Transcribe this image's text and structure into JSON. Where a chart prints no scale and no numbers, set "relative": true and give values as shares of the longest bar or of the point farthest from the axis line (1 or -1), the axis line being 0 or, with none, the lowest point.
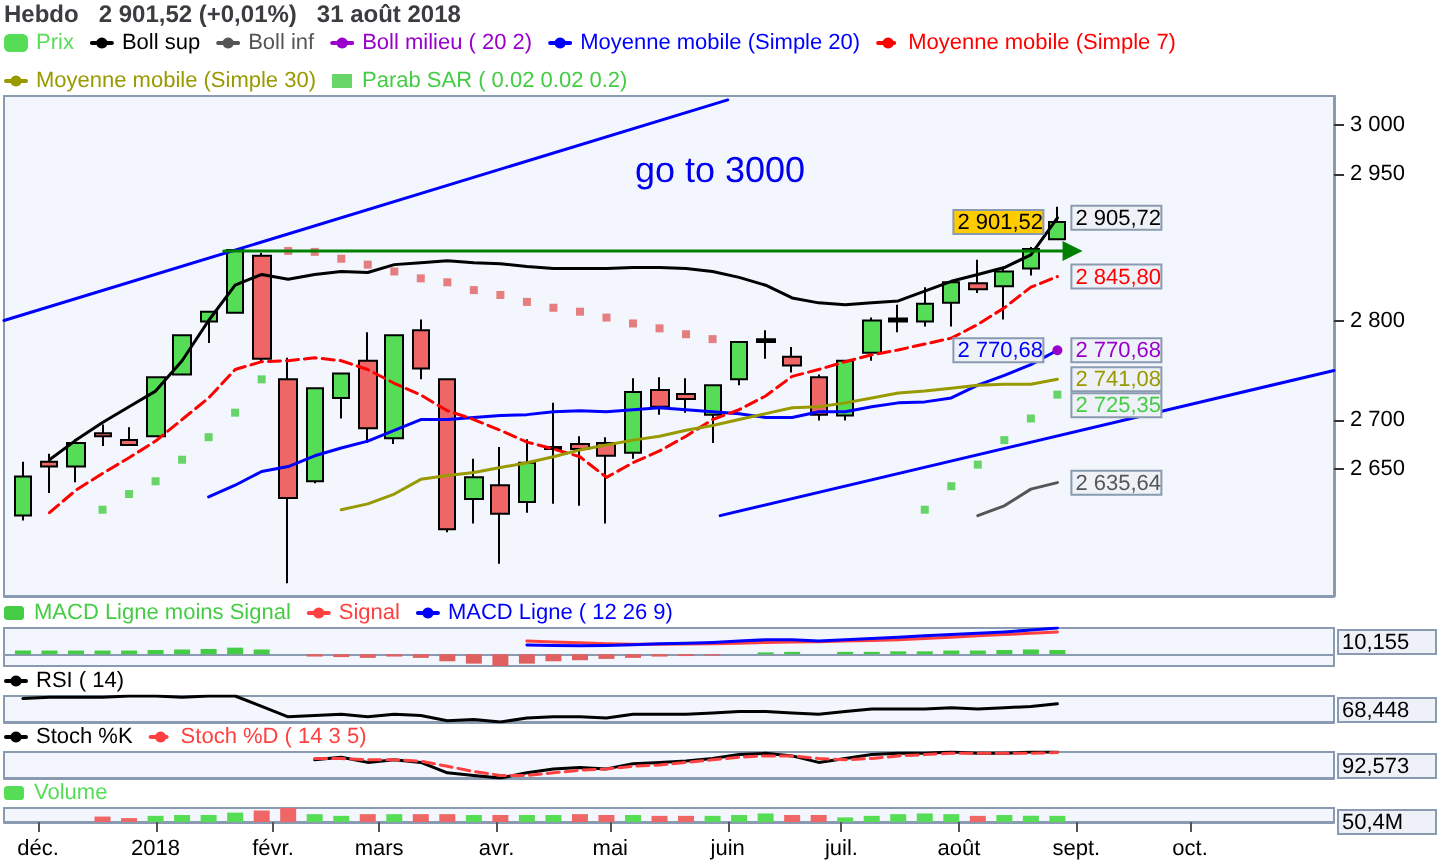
{
  "chart_data": [
    {
      "type": "candlestick",
      "title": "Hebdo   2 901,52 (+0,01%)   31 août 2018",
      "legend": "top left",
      "tick_labels": "y",
      "marker": "none",
      "x": [
        "2017-11-27",
        "2017-12-04",
        "2017-12-11",
        "2017-12-18",
        "2017-12-25",
        "2018-01-01",
        "2018-01-08",
        "2018-01-15",
        "2018-01-22",
        "2018-01-29",
        "2018-02-05",
        "2018-02-12",
        "2018-02-19",
        "2018-02-26",
        "2018-03-05",
        "2018-03-12",
        "2018-03-19",
        "2018-03-26",
        "2018-04-02",
        "2018-04-09",
        "2018-04-16",
        "2018-04-23",
        "2018-04-30",
        "2018-05-07",
        "2018-05-14",
        "2018-05-21",
        "2018-05-28",
        "2018-06-04",
        "2018-06-11",
        "2018-06-18",
        "2018-06-25",
        "2018-07-02",
        "2018-07-09",
        "2018-07-16",
        "2018-07-23",
        "2018-07-30",
        "2018-08-06",
        "2018-08-13",
        "2018-08-20",
        "2018-08-27"
      ],
      "xlim": [
        "2017-11-22",
        "2018-11-08"
      ],
      "ylim": [
        2520,
        3030
      ],
      "yticks": [
        {
          "value": 2650,
          "label": "2 650"
        },
        {
          "value": 2700,
          "label": "2 700"
        },
        {
          "value": 2800,
          "label": "2 800"
        },
        {
          "value": 2950,
          "label": "2 950"
        },
        {
          "value": 3000,
          "label": "3 000"
        }
      ],
      "annotations": [
        "go to 3000",
        {
          "text": "2 901,52",
          "x": "2018-08-27",
          "y": 2901.52
        }
      ],
      "series": [
        {
          "name": "Prix",
          "type": "candlestick",
          "color": "#55dd55",
          "colors": [
            "#55dd55",
            "#ee6666",
            "#55dd55",
            "#ee6666",
            "#ee6666",
            "#55dd55",
            "#55dd55",
            "#55dd55",
            "#55dd55",
            "#ee6666",
            "#ee6666",
            "#55dd55",
            "#55dd55",
            "#ee6666",
            "#55dd55",
            "#ee6666",
            "#ee6666",
            "#55dd55",
            "#ee6666",
            "#55dd55",
            "#000000",
            "#ee6666",
            "#ee6666",
            "#55dd55",
            "#ee6666",
            "#ee6666",
            "#55dd55",
            "#55dd55",
            "#000000",
            "#ee6666",
            "#ee6666",
            "#55dd55",
            "#55dd55",
            "#000000",
            "#55dd55",
            "#55dd55",
            "#ee6666",
            "#55dd55",
            "#55dd55",
            "#55dd55"
          ],
          "ohlc": [
            [
              2602,
              2657,
              2597,
              2642
            ],
            [
              2657,
              2665,
              2625,
              2652
            ],
            [
              2652,
              2680,
              2636,
              2676
            ],
            [
              2686,
              2695,
              2673,
              2683
            ],
            [
              2679,
              2692,
              2673,
              2674
            ],
            [
              2683,
              2743,
              2683,
              2743
            ],
            [
              2746,
              2787,
              2746,
              2786
            ],
            [
              2800,
              2810,
              2778,
              2810
            ],
            [
              2809,
              2873,
              2808,
              2873
            ],
            [
              2867,
              2870,
              2759,
              2762
            ],
            [
              2741,
              2763,
              2533,
              2620
            ],
            [
              2637,
              2732,
              2635,
              2732
            ],
            [
              2722,
              2747,
              2701,
              2747
            ],
            [
              2760,
              2789,
              2676,
              2691
            ],
            [
              2681,
              2786,
              2675,
              2786
            ],
            [
              2791,
              2802,
              2741,
              2752
            ],
            [
              2741,
              2741,
              2585,
              2588
            ],
            [
              2619,
              2660,
              2594,
              2641
            ],
            [
              2633,
              2672,
              2553,
              2604
            ],
            [
              2616,
              2680,
              2605,
              2656
            ],
            [
              2670,
              2717,
              2614,
              2672
            ],
            [
              2675,
              2683,
              2612,
              2670
            ],
            [
              2676,
              2682,
              2594,
              2663
            ],
            [
              2666,
              2742,
              2660,
              2728
            ],
            [
              2730,
              2743,
              2705,
              2713
            ],
            [
              2726,
              2742,
              2707,
              2721
            ],
            [
              2705,
              2736,
              2676,
              2735
            ],
            [
              2741,
              2779,
              2735,
              2779
            ],
            [
              2779,
              2791,
              2762,
              2782
            ],
            [
              2764,
              2774,
              2748,
              2755
            ],
            [
              2743,
              2746,
              2699,
              2705
            ],
            [
              2704,
              2760,
              2699,
              2760
            ],
            [
              2768,
              2804,
              2760,
              2801
            ],
            [
              2800,
              2817,
              2789,
              2803
            ],
            [
              2800,
              2835,
              2795,
              2818
            ],
            [
              2819,
              2841,
              2795,
              2840
            ],
            [
              2839,
              2863,
              2829,
              2833
            ],
            [
              2836,
              2855,
              2802,
              2851
            ],
            [
              2854,
              2876,
              2847,
              2874
            ],
            [
              2884,
              2917,
              2884,
              2901.52
            ]
          ]
        },
        {
          "name": "Boll sup",
          "type": "line",
          "color": "#000000",
          "values": [
            null,
            2659,
            2679,
            2697,
            2713,
            2729,
            2760,
            2801,
            2837,
            2848,
            2843,
            2848,
            2851,
            2850,
            2858,
            2860,
            2862,
            2860,
            2859,
            2856,
            2854,
            2854,
            2854,
            2855,
            2855,
            2854,
            2851,
            2845,
            2837,
            2824,
            2819,
            2817,
            2819,
            2821,
            2831,
            2841,
            2848,
            2855,
            2868,
            2905.72
          ],
          "value_labels": [
            null,
            null,
            null,
            null,
            null,
            null,
            null,
            null,
            null,
            null,
            null,
            null,
            null,
            null,
            null,
            null,
            null,
            null,
            null,
            null,
            null,
            null,
            null,
            null,
            null,
            null,
            null,
            null,
            null,
            null,
            null,
            null,
            null,
            null,
            null,
            null,
            null,
            null,
            null,
            "2 905,72"
          ]
        },
        {
          "name": "Boll inf",
          "type": "line",
          "color": "#555555",
          "values": [
            null,
            null,
            null,
            null,
            null,
            null,
            null,
            null,
            null,
            null,
            null,
            null,
            null,
            null,
            null,
            null,
            null,
            null,
            null,
            null,
            null,
            null,
            null,
            null,
            null,
            null,
            null,
            null,
            null,
            null,
            null,
            null,
            null,
            null,
            null,
            null,
            2602,
            2612,
            2629,
            2635.64
          ],
          "value_labels": [
            null,
            null,
            null,
            null,
            null,
            null,
            null,
            null,
            null,
            null,
            null,
            null,
            null,
            null,
            null,
            null,
            null,
            null,
            null,
            null,
            null,
            null,
            null,
            null,
            null,
            null,
            null,
            null,
            null,
            null,
            null,
            null,
            null,
            null,
            null,
            null,
            null,
            null,
            null,
            "2 635,64"
          ]
        },
        {
          "name": "Boll milieu ( 20 2)",
          "type": "line",
          "color": "#9900cc",
          "marker": "circle",
          "values": [
            null,
            null,
            null,
            null,
            null,
            null,
            null,
            null,
            null,
            null,
            null,
            null,
            null,
            null,
            null,
            null,
            null,
            null,
            null,
            null,
            null,
            null,
            null,
            null,
            null,
            null,
            null,
            null,
            null,
            null,
            null,
            null,
            null,
            null,
            null,
            null,
            null,
            null,
            null,
            2770.68
          ],
          "value_labels": [
            null,
            null,
            null,
            null,
            null,
            null,
            null,
            null,
            null,
            null,
            null,
            null,
            null,
            null,
            null,
            null,
            null,
            null,
            null,
            null,
            null,
            null,
            null,
            null,
            null,
            null,
            null,
            null,
            null,
            null,
            null,
            null,
            null,
            null,
            null,
            null,
            null,
            null,
            null,
            "2 770,68"
          ]
        },
        {
          "name": "Moyenne mobile (Simple 20)",
          "type": "line",
          "color": "#0000ff",
          "values": [
            null,
            null,
            null,
            null,
            null,
            null,
            null,
            2621,
            2633,
            2647,
            2652,
            2663,
            2671,
            2678,
            2689,
            2700,
            2700,
            2702,
            2704,
            2705,
            2708,
            2709,
            2708,
            2710,
            2712,
            2710,
            2708,
            2706,
            2702,
            2702,
            2708,
            2708,
            2713,
            2717,
            2718,
            2722,
            2735,
            2745,
            2756,
            2770.68
          ],
          "value_labels": [
            null,
            null,
            null,
            null,
            null,
            null,
            null,
            null,
            null,
            null,
            null,
            null,
            null,
            null,
            null,
            null,
            null,
            null,
            null,
            null,
            null,
            null,
            null,
            null,
            null,
            null,
            null,
            null,
            null,
            null,
            null,
            null,
            null,
            null,
            null,
            null,
            null,
            null,
            null,
            "2 770,68"
          ]
        },
        {
          "name": "Moyenne mobile (Simple 7)",
          "type": "line",
          "color": "#ff0000",
          "line_style": "dashed",
          "values": [
            null,
            2605,
            2628,
            2645,
            2661,
            2678,
            2700,
            2722,
            2751,
            2759,
            2760,
            2763,
            2760,
            2751,
            2737,
            2725,
            2709,
            2700,
            2689,
            2677,
            2670,
            2662,
            2641,
            2656,
            2668,
            2683,
            2700,
            2710,
            2724,
            2744,
            2751,
            2759,
            2766,
            2771,
            2777,
            2783,
            2797,
            2814,
            2835,
            2845.8
          ],
          "value_labels": [
            null,
            null,
            null,
            null,
            null,
            null,
            null,
            null,
            null,
            null,
            null,
            null,
            null,
            null,
            null,
            null,
            null,
            null,
            null,
            null,
            null,
            null,
            null,
            null,
            null,
            null,
            null,
            null,
            null,
            null,
            null,
            null,
            null,
            null,
            null,
            null,
            null,
            null,
            null,
            "2 845,80"
          ]
        },
        {
          "name": "Moyenne mobile (Simple 30)",
          "type": "line",
          "color": "#999900",
          "values": [
            null,
            null,
            null,
            null,
            null,
            null,
            null,
            null,
            null,
            null,
            null,
            null,
            2608,
            2614,
            2624,
            2639,
            2643,
            2646,
            2651,
            2656,
            2662,
            2669,
            2674,
            2679,
            2683,
            2689,
            2694,
            2700,
            2706,
            2712,
            2713,
            2717,
            2722,
            2727,
            2729,
            2732,
            2735,
            2736,
            2736,
            2741.08
          ],
          "value_labels": [
            null,
            null,
            null,
            null,
            null,
            null,
            null,
            null,
            null,
            null,
            null,
            null,
            null,
            null,
            null,
            null,
            null,
            null,
            null,
            null,
            null,
            null,
            null,
            null,
            null,
            null,
            null,
            null,
            null,
            null,
            null,
            null,
            null,
            null,
            null,
            null,
            null,
            null,
            null,
            "2 741,08"
          ]
        },
        {
          "name": "Parab SAR ( 0.02 0.02 0.2)",
          "type": "scatter",
          "marker": "square",
          "color": "#44cc44",
          "colors": [
            "#44cc44",
            "#44cc44",
            "#44cc44",
            "#44cc44",
            "#44cc44",
            "#44cc44",
            "#44cc44",
            "#44cc44",
            "#44cc44",
            "#44cc44",
            "#e06060",
            "#e06060",
            "#e06060",
            "#e06060",
            "#e06060",
            "#e06060",
            "#e06060",
            "#e06060",
            "#e06060",
            "#e06060",
            "#e06060",
            "#e06060",
            "#e06060",
            "#e06060",
            "#e06060",
            "#e06060",
            "#e06060",
            "#44cc44",
            "#44cc44",
            "#44cc44",
            "#44cc44",
            "#44cc44",
            "#44cc44",
            "#44cc44",
            "#44cc44",
            "#44cc44",
            "#44cc44",
            "#44cc44",
            "#44cc44",
            "#44cc44"
          ],
          "values": [
            null,
            null,
            null,
            2608,
            2624,
            2637,
            2659,
            2682,
            2707,
            2741,
            2872,
            2871,
            2864,
            2858,
            2851,
            2844,
            2840,
            2832,
            2827,
            2820,
            2814,
            2810,
            2804,
            2798,
            2793,
            2787,
            2782,
            null,
            null,
            null,
            null,
            null,
            null,
            null,
            2608,
            2632,
            2654,
            2679,
            2701,
            2725.35
          ],
          "value_labels": [
            null,
            null,
            null,
            null,
            null,
            null,
            null,
            null,
            null,
            null,
            null,
            null,
            null,
            null,
            null,
            null,
            null,
            null,
            null,
            null,
            null,
            null,
            null,
            null,
            null,
            null,
            null,
            null,
            null,
            null,
            null,
            null,
            null,
            null,
            null,
            null,
            null,
            null,
            null,
            "2 725,35"
          ]
        },
        {
          "type": "line",
          "color": "#0000ff",
          "x": [
            "2017-11-22",
            "2018-06-01"
          ],
          "values": [
            2801,
            3026
          ]
        },
        {
          "type": "line",
          "color": "#0000ff",
          "x": [
            "2018-05-30",
            "2018-11-08"
          ],
          "values": [
            2602,
            2750
          ]
        },
        {
          "type": "line",
          "color": "#008000",
          "marker": "triangle",
          "x": [
            "2018-01-19",
            "2018-08-31"
          ],
          "values": [
            2872,
            2872
          ]
        }
      ]
    },
    {
      "type": "bar",
      "relative": true,
      "legend": "top left",
      "tick_labels": false,
      "marker": "none",
      "x": [
        "2017-11-27",
        "2017-12-04",
        "2017-12-11",
        "2017-12-18",
        "2017-12-25",
        "2018-01-01",
        "2018-01-08",
        "2018-01-15",
        "2018-01-22",
        "2018-01-29",
        "2018-02-05",
        "2018-02-12",
        "2018-02-19",
        "2018-02-26",
        "2018-03-05",
        "2018-03-12",
        "2018-03-19",
        "2018-03-26",
        "2018-04-02",
        "2018-04-09",
        "2018-04-16",
        "2018-04-23",
        "2018-04-30",
        "2018-05-07",
        "2018-05-14",
        "2018-05-21",
        "2018-05-28",
        "2018-06-04",
        "2018-06-11",
        "2018-06-18",
        "2018-06-25",
        "2018-07-02",
        "2018-07-09",
        "2018-07-16",
        "2018-07-23",
        "2018-07-30",
        "2018-08-06",
        "2018-08-13",
        "2018-08-20",
        "2018-08-27"
      ],
      "xlim": [
        "2017-11-22",
        "2018-11-08"
      ],
      "annotations": [
        "10,155"
      ],
      "series": [
        {
          "name": "MACD Ligne moins Signal",
          "type": "bar",
          "color": "#44cc44",
          "colors": [
            "#44cc44",
            "#44cc44",
            "#44cc44",
            "#44cc44",
            "#44cc44",
            "#44cc44",
            "#44cc44",
            "#44cc44",
            "#44cc44",
            "#44cc44",
            "#44cc44",
            "#e06060",
            "#e06060",
            "#e06060",
            "#e06060",
            "#e06060",
            "#e06060",
            "#e06060",
            "#e06060",
            "#e06060",
            "#e06060",
            "#e06060",
            "#e06060",
            "#e06060",
            "#e06060",
            "#e06060",
            "#e06060",
            "#44cc44",
            "#44cc44",
            "#44cc44",
            "#44cc44",
            "#44cc44",
            "#44cc44",
            "#44cc44",
            "#44cc44",
            "#44cc44",
            "#44cc44",
            "#44cc44",
            "#44cc44",
            "#44cc44"
          ],
          "values": [
            0.14,
            0.14,
            0.14,
            0.14,
            0.14,
            0.16,
            0.18,
            0.2,
            0.25,
            0.18,
            0,
            -0.09,
            -0.11,
            -0.14,
            -0.09,
            -0.14,
            -0.27,
            -0.36,
            -0.45,
            -0.36,
            -0.27,
            -0.23,
            -0.18,
            -0.14,
            -0.09,
            -0.07,
            -0.05,
            0,
            0.07,
            0.09,
            0,
            0.09,
            0.09,
            0.11,
            0.11,
            0.14,
            0.14,
            0.16,
            0.18,
            0.16
          ]
        },
        {
          "name": "Signal",
          "type": "line",
          "color": "#ff4040",
          "x": [
            "2018-04-09",
            "2018-04-16",
            "2018-04-23",
            "2018-04-30",
            "2018-05-07",
            "2018-05-14",
            "2018-05-21",
            "2018-05-28",
            "2018-06-04",
            "2018-06-11",
            "2018-06-18",
            "2018-06-25",
            "2018-07-02",
            "2018-07-09",
            "2018-07-16",
            "2018-07-23",
            "2018-07-30",
            "2018-08-06",
            "2018-08-13",
            "2018-08-20",
            "2018-08-27"
          ],
          "values": [
            0.5,
            0.47,
            0.44,
            0.4,
            0.38,
            0.38,
            0.39,
            0.4,
            0.42,
            0.45,
            0.47,
            0.48,
            0.5,
            0.52,
            0.55,
            0.6,
            0.65,
            0.7,
            0.75,
            0.8,
            0.85
          ]
        },
        {
          "name": "MACD Ligne ( 12 26 9)",
          "type": "line",
          "color": "#0000ff",
          "x": [
            "2018-04-09",
            "2018-04-16",
            "2018-04-23",
            "2018-04-30",
            "2018-05-07",
            "2018-05-14",
            "2018-05-21",
            "2018-05-28",
            "2018-06-04",
            "2018-06-11",
            "2018-06-18",
            "2018-06-25",
            "2018-07-02",
            "2018-07-09",
            "2018-07-16",
            "2018-07-23",
            "2018-07-30",
            "2018-08-06",
            "2018-08-13",
            "2018-08-20",
            "2018-08-27"
          ],
          "values": [
            0.35,
            0.33,
            0.32,
            0.33,
            0.36,
            0.4,
            0.42,
            0.45,
            0.5,
            0.55,
            0.55,
            0.5,
            0.55,
            0.6,
            0.65,
            0.7,
            0.75,
            0.8,
            0.85,
            0.92,
            1
          ]
        }
      ]
    },
    {
      "type": "line",
      "relative": true,
      "legend": "top left",
      "tick_labels": false,
      "marker": "none",
      "x": [
        "2017-11-27",
        "2017-12-04",
        "2017-12-11",
        "2017-12-18",
        "2017-12-25",
        "2018-01-01",
        "2018-01-08",
        "2018-01-15",
        "2018-01-22",
        "2018-01-29",
        "2018-02-05",
        "2018-02-12",
        "2018-02-19",
        "2018-02-26",
        "2018-03-05",
        "2018-03-12",
        "2018-03-19",
        "2018-03-26",
        "2018-04-02",
        "2018-04-09",
        "2018-04-16",
        "2018-04-23",
        "2018-04-30",
        "2018-05-07",
        "2018-05-14",
        "2018-05-21",
        "2018-05-28",
        "2018-06-04",
        "2018-06-11",
        "2018-06-18",
        "2018-06-25",
        "2018-07-02",
        "2018-07-09",
        "2018-07-16",
        "2018-07-23",
        "2018-07-30",
        "2018-08-06",
        "2018-08-13",
        "2018-08-20",
        "2018-08-27"
      ],
      "xlim": [
        "2017-11-22",
        "2018-11-08"
      ],
      "annotations": [
        "68,448"
      ],
      "series": [
        {
          "name": "RSI ( 14)",
          "color": "#000000",
          "values": [
            0.9,
            0.95,
            0.95,
            0.95,
            1,
            1,
            0.95,
            1,
            1,
            0.6,
            0.2,
            0.25,
            0.3,
            0.2,
            0.3,
            0.25,
            0.05,
            0.1,
            0,
            0.15,
            0.2,
            0.2,
            0.15,
            0.3,
            0.3,
            0.3,
            0.35,
            0.4,
            0.4,
            0.35,
            0.3,
            0.4,
            0.5,
            0.5,
            0.5,
            0.55,
            0.5,
            0.55,
            0.6,
            0.7
          ]
        }
      ]
    },
    {
      "type": "line",
      "relative": true,
      "legend": "top left",
      "tick_labels": false,
      "marker": "none",
      "x": [
        "2018-02-12",
        "2018-02-19",
        "2018-02-26",
        "2018-03-05",
        "2018-03-12",
        "2018-03-19",
        "2018-03-26",
        "2018-04-02",
        "2018-04-09",
        "2018-04-16",
        "2018-04-23",
        "2018-04-30",
        "2018-05-07",
        "2018-05-14",
        "2018-05-21",
        "2018-05-28",
        "2018-06-04",
        "2018-06-11",
        "2018-06-18",
        "2018-06-25",
        "2018-07-02",
        "2018-07-09",
        "2018-07-16",
        "2018-07-23",
        "2018-07-30",
        "2018-08-06",
        "2018-08-13",
        "2018-08-20",
        "2018-08-27"
      ],
      "xlim": [
        "2017-11-22",
        "2018-11-08"
      ],
      "annotations": [
        "92,573"
      ],
      "series": [
        {
          "name": "Stoch %K",
          "color": "#000000",
          "values": [
            0.7,
            0.8,
            0.6,
            0.7,
            0.6,
            0.2,
            0.1,
            0,
            0.2,
            0.35,
            0.4,
            0.35,
            0.55,
            0.6,
            0.65,
            0.75,
            0.9,
            0.95,
            0.85,
            0.6,
            0.75,
            0.9,
            0.95,
            0.95,
            1,
            0.95,
            0.95,
            1,
            1
          ]
        },
        {
          "name": "Stoch %D ( 14 3 5)",
          "color": "#ff4040",
          "line_style": "dashed",
          "values": [
            0.75,
            0.75,
            0.7,
            0.7,
            0.65,
            0.45,
            0.25,
            0.1,
            0.1,
            0.2,
            0.3,
            0.35,
            0.45,
            0.5,
            0.6,
            0.7,
            0.8,
            0.85,
            0.85,
            0.75,
            0.7,
            0.75,
            0.85,
            0.9,
            0.95,
            0.95,
            0.95,
            0.95,
            0.98
          ]
        }
      ]
    },
    {
      "type": "bar",
      "relative": true,
      "legend": "top left",
      "tick_labels": "x",
      "x": [
        "2017-12-18",
        "2017-12-25",
        "2018-01-01",
        "2018-01-08",
        "2018-01-15",
        "2018-01-22",
        "2018-01-29",
        "2018-02-05",
        "2018-02-12",
        "2018-02-19",
        "2018-02-26",
        "2018-03-05",
        "2018-03-12",
        "2018-03-19",
        "2018-03-26",
        "2018-04-02",
        "2018-04-09",
        "2018-04-16",
        "2018-04-23",
        "2018-04-30",
        "2018-05-07",
        "2018-05-14",
        "2018-05-21",
        "2018-05-28",
        "2018-06-04",
        "2018-06-11",
        "2018-06-18",
        "2018-06-25",
        "2018-07-02",
        "2018-07-09",
        "2018-07-16",
        "2018-07-23",
        "2018-07-30",
        "2018-08-06",
        "2018-08-13",
        "2018-08-20",
        "2018-08-27"
      ],
      "xlim": [
        "2017-11-22",
        "2018-11-08"
      ],
      "xticks": [
        {
          "value": "2017-12-01",
          "label": "déc."
        },
        {
          "value": "2018-01-01",
          "label": "2018"
        },
        {
          "value": "2018-02-01",
          "label": "févr."
        },
        {
          "value": "2018-03-01",
          "label": "mars"
        },
        {
          "value": "2018-04-01",
          "label": "avr."
        },
        {
          "value": "2018-05-01",
          "label": "mai"
        },
        {
          "value": "2018-06-01",
          "label": "juin"
        },
        {
          "value": "2018-07-01",
          "label": "juil."
        },
        {
          "value": "2018-08-01",
          "label": "août"
        },
        {
          "value": "2018-09-01",
          "label": "sept."
        },
        {
          "value": "2018-10-01",
          "label": "oct."
        }
      ],
      "annotations": [
        "50,4M"
      ],
      "series": [
        {
          "name": "Volume",
          "color": "#55dd55",
          "colors": [
            "#ee6666",
            "#ee6666",
            "#55dd55",
            "#55dd55",
            "#55dd55",
            "#55dd55",
            "#ee6666",
            "#ee6666",
            "#55dd55",
            "#55dd55",
            "#ee6666",
            "#55dd55",
            "#ee6666",
            "#ee6666",
            "#55dd55",
            "#ee6666",
            "#55dd55",
            "#55dd55",
            "#ee6666",
            "#ee6666",
            "#55dd55",
            "#ee6666",
            "#ee6666",
            "#55dd55",
            "#55dd55",
            "#55dd55",
            "#ee6666",
            "#ee6666",
            "#55dd55",
            "#55dd55",
            "#55dd55",
            "#55dd55",
            "#55dd55",
            "#ee6666",
            "#55dd55",
            "#55dd55",
            "#55dd55"
          ],
          "values": [
            0.39,
            0.28,
            0.44,
            0.5,
            0.5,
            0.67,
            0.83,
            1,
            0.56,
            0.44,
            0.56,
            0.56,
            0.56,
            0.56,
            0.5,
            0.5,
            0.5,
            0.5,
            0.56,
            0.5,
            0.5,
            0.44,
            0.44,
            0.44,
            0.5,
            0.61,
            0.5,
            0.5,
            0.33,
            0.44,
            0.56,
            0.61,
            0.56,
            0.44,
            0.5,
            0.44,
            0.44
          ]
        }
      ]
    }
  ]
}
